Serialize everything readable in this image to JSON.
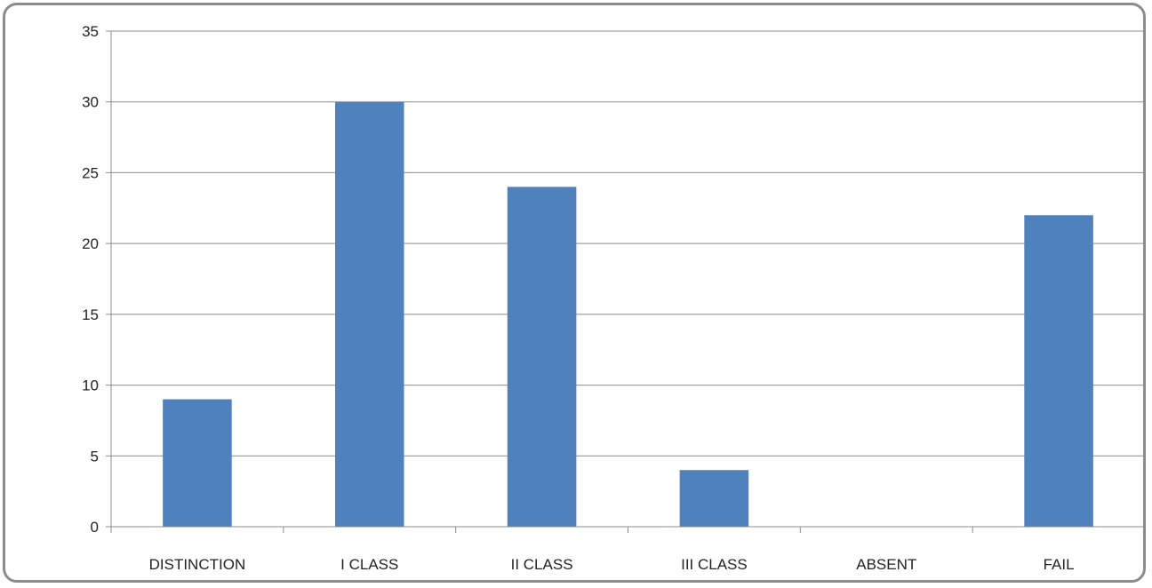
{
  "top_table_row": [
    "9",
    "30",
    "24",
    "4",
    "0",
    "22"
  ],
  "chart_data": {
    "type": "bar",
    "title": "",
    "xlabel": "",
    "ylabel": "",
    "categories": [
      "DISTINCTION",
      "I CLASS",
      "II CLASS",
      "III CLASS",
      "ABSENT",
      "FAIL"
    ],
    "values": [
      9,
      30,
      24,
      4,
      0,
      22
    ],
    "ylim": [
      0,
      35
    ],
    "yticks": [
      0,
      5,
      10,
      15,
      20,
      25,
      30,
      35
    ],
    "grid": true,
    "legend": "none",
    "bar_color": "#4f81bd"
  }
}
